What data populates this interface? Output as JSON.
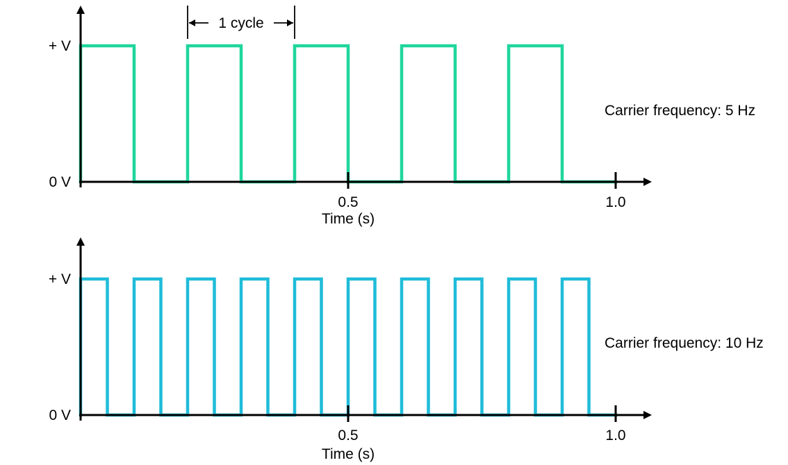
{
  "chart_data": [
    {
      "type": "line",
      "title": "",
      "xlabel": "Time (s)",
      "y_labels": [
        "+ V",
        "0 V"
      ],
      "x_ticks": [
        {
          "value": 0.5,
          "label": "0.5"
        },
        {
          "value": 1.0,
          "label": "1.0"
        }
      ],
      "xlim": [
        0,
        1.0
      ],
      "ylim": [
        0,
        1
      ],
      "annotation": "Carrier frequency: 5 Hz",
      "cycle_label": "1 cycle",
      "cycle_span": [
        0.2,
        0.4
      ],
      "color": "#1fd69c",
      "series": [
        {
          "x": [
            0,
            0,
            0.1,
            0.1,
            0.2,
            0.2,
            0.3,
            0.3,
            0.4,
            0.4,
            0.5,
            0.5,
            0.6,
            0.6,
            0.7,
            0.7,
            0.8,
            0.8,
            0.9,
            0.9,
            1.0
          ],
          "values": [
            0,
            1,
            1,
            0,
            0,
            1,
            1,
            0,
            0,
            1,
            1,
            0,
            0,
            1,
            1,
            0,
            0,
            1,
            1,
            0,
            0
          ]
        }
      ]
    },
    {
      "type": "line",
      "title": "",
      "xlabel": "Time (s)",
      "y_labels": [
        "+ V",
        "0 V"
      ],
      "x_ticks": [
        {
          "value": 0.5,
          "label": "0.5"
        },
        {
          "value": 1.0,
          "label": "1.0"
        }
      ],
      "xlim": [
        0,
        1.0
      ],
      "ylim": [
        0,
        1
      ],
      "annotation": "Carrier frequency: 10 Hz",
      "color": "#1fbcd9",
      "series": [
        {
          "x": [
            0,
            0,
            0.05,
            0.05,
            0.1,
            0.1,
            0.15,
            0.15,
            0.2,
            0.2,
            0.25,
            0.25,
            0.3,
            0.3,
            0.35,
            0.35,
            0.4,
            0.4,
            0.45,
            0.45,
            0.5,
            0.5,
            0.55,
            0.55,
            0.6,
            0.6,
            0.65,
            0.65,
            0.7,
            0.7,
            0.75,
            0.75,
            0.8,
            0.8,
            0.85,
            0.85,
            0.9,
            0.9,
            0.95,
            0.95,
            1.0
          ],
          "values": [
            0,
            1,
            1,
            0,
            0,
            1,
            1,
            0,
            0,
            1,
            1,
            0,
            0,
            1,
            1,
            0,
            0,
            1,
            1,
            0,
            0,
            1,
            1,
            0,
            0,
            1,
            1,
            0,
            0,
            1,
            1,
            0,
            0,
            1,
            1,
            0,
            0,
            1,
            1,
            0,
            0
          ]
        }
      ]
    }
  ]
}
